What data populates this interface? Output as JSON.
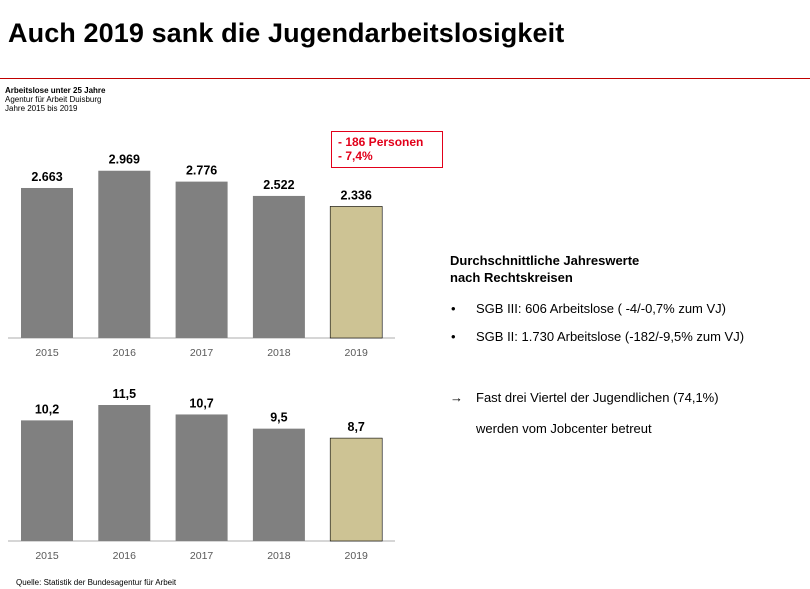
{
  "slide": {
    "title": "Auch 2019 sank die Jugendarbeitslosigkeit",
    "subtitle_lines": [
      "Arbeitslose unter 25 Jahre",
      "Agentur für Arbeit Duisburg",
      "Jahre 2015 bis 2019"
    ],
    "source": "Quelle: Statistik der Bundesagentur für Arbeit"
  },
  "annotation": {
    "lines": [
      "- 186 Personen",
      "- 7,4%"
    ]
  },
  "panel": {
    "heading_lines": [
      "Durchschnittliche Jahreswerte",
      "nach Rechtskreisen"
    ],
    "bullets": [
      "SGB III: 606 Arbeitslose ( -4/-0,7% zum VJ)",
      "SGB II:  1.730 Arbeitslose (-182/-9,5% zum VJ)"
    ],
    "conclusion_lines": [
      "Fast drei Viertel der Jugendlichen (74,1%)",
      "werden vom Jobcenter betreut"
    ]
  },
  "colors": {
    "bar": "#808080",
    "highlight_bar": "#cdc394",
    "accent_red": "#e2001a",
    "rule_red": "#c00000",
    "axis": "#c8c8c8"
  },
  "chart_data": [
    {
      "type": "bar",
      "categories": [
        "2015",
        "2016",
        "2017",
        "2018",
        "2019"
      ],
      "values": [
        2663,
        2969,
        2776,
        2522,
        2336
      ],
      "value_labels": [
        "2.663",
        "2.969",
        "2.776",
        "2.522",
        "2.336"
      ],
      "highlight_index": 4,
      "ylim": [
        0,
        3000
      ]
    },
    {
      "type": "bar",
      "categories": [
        "2015",
        "2016",
        "2017",
        "2018",
        "2019"
      ],
      "values": [
        10.2,
        11.5,
        10.7,
        9.5,
        8.7
      ],
      "value_labels": [
        "10,2",
        "11,5",
        "10,7",
        "9,5",
        "8,7"
      ],
      "highlight_index": 4,
      "ylim": [
        0,
        11.5
      ]
    }
  ]
}
